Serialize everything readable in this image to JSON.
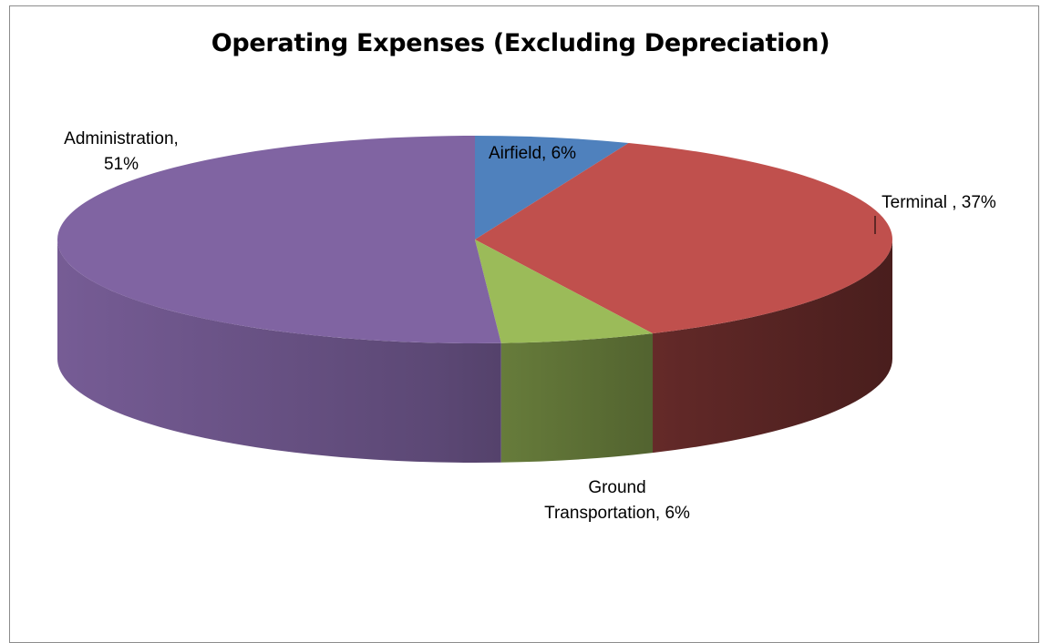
{
  "chart_data": {
    "type": "pie",
    "title": "Operating Expenses (Excluding Depreciation)",
    "slices": [
      {
        "name": "Airfield",
        "value": 6,
        "color": "#4F81BD",
        "label_lines": [
          "Airfield, 6%"
        ]
      },
      {
        "name": "Terminal",
        "value": 37,
        "color": "#C0504D",
        "label_lines": [
          "Terminal , 37%"
        ]
      },
      {
        "name": "Ground Transportation",
        "value": 6,
        "color": "#9BBB59",
        "label_lines": [
          "Ground",
          "Transportation, 6%"
        ]
      },
      {
        "name": "Administration",
        "value": 51,
        "color": "#8064A2",
        "label_lines": [
          "Administration,",
          "51%"
        ]
      }
    ],
    "legend": "none",
    "style": "3d-pie"
  }
}
